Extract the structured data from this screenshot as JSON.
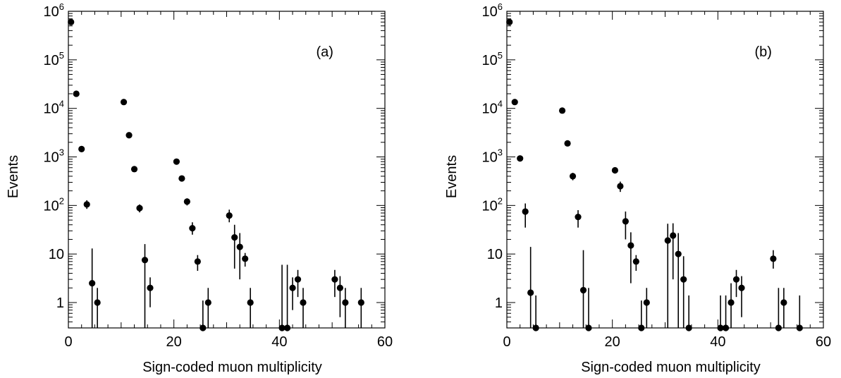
{
  "chart_data": [
    {
      "type": "scatter",
      "panel_label": "(a)",
      "xlabel": "Sign-coded muon multiplicity",
      "ylabel": "Events",
      "xlim": [
        0,
        60
      ],
      "ylim": [
        0.3,
        1000000
      ],
      "yscale": "log",
      "x_ticks": [
        "0",
        "20",
        "40",
        "60"
      ],
      "y_ticks": [
        "1",
        "10",
        "10^2",
        "10^3",
        "10^4",
        "10^5",
        "10^6"
      ],
      "grid": false,
      "points": [
        {
          "x": 0.5,
          "y": 600000,
          "lo": 600000,
          "hi": 600000
        },
        {
          "x": 1.5,
          "y": 20000,
          "lo": 20000,
          "hi": 20000
        },
        {
          "x": 2.5,
          "y": 1450,
          "lo": 1450,
          "hi": 1450
        },
        {
          "x": 3.5,
          "y": 105,
          "lo": 85,
          "hi": 128
        },
        {
          "x": 4.5,
          "y": 2.5,
          "lo": 0.3,
          "hi": 13
        },
        {
          "x": 5.5,
          "y": 1,
          "lo": 0.3,
          "hi": 2
        },
        {
          "x": 10.5,
          "y": 13500,
          "lo": 13500,
          "hi": 13500
        },
        {
          "x": 11.5,
          "y": 2800,
          "lo": 2800,
          "hi": 2800
        },
        {
          "x": 12.5,
          "y": 560,
          "lo": 560,
          "hi": 560
        },
        {
          "x": 13.5,
          "y": 88,
          "lo": 72,
          "hi": 105
        },
        {
          "x": 14.5,
          "y": 7.5,
          "lo": 0.3,
          "hi": 16
        },
        {
          "x": 15.5,
          "y": 2,
          "lo": 0.8,
          "hi": 3.3
        },
        {
          "x": 20.5,
          "y": 800,
          "lo": 800,
          "hi": 800
        },
        {
          "x": 21.5,
          "y": 360,
          "lo": 360,
          "hi": 360
        },
        {
          "x": 22.5,
          "y": 120,
          "lo": 100,
          "hi": 140
        },
        {
          "x": 23.5,
          "y": 34,
          "lo": 25,
          "hi": 45
        },
        {
          "x": 24.5,
          "y": 7,
          "lo": 4.5,
          "hi": 9.5
        },
        {
          "x": 25.5,
          "y": 0.3,
          "lo": 0.3,
          "hi": 1.1
        },
        {
          "x": 26.5,
          "y": 1,
          "lo": 0.3,
          "hi": 2
        },
        {
          "x": 30.5,
          "y": 62,
          "lo": 45,
          "hi": 82
        },
        {
          "x": 31.5,
          "y": 22,
          "lo": 5,
          "hi": 40
        },
        {
          "x": 32.5,
          "y": 14,
          "lo": 3,
          "hi": 27
        },
        {
          "x": 33.5,
          "y": 8,
          "lo": 5.5,
          "hi": 10.5
        },
        {
          "x": 34.5,
          "y": 1,
          "lo": 0.3,
          "hi": 2
        },
        {
          "x": 40.5,
          "y": 0.3,
          "lo": 0.3,
          "hi": 6
        },
        {
          "x": 41.5,
          "y": 0.3,
          "lo": 0.3,
          "hi": 6
        },
        {
          "x": 42.5,
          "y": 2,
          "lo": 0.7,
          "hi": 3.3
        },
        {
          "x": 43.5,
          "y": 3,
          "lo": 1.3,
          "hi": 4.7
        },
        {
          "x": 44.5,
          "y": 1,
          "lo": 0.3,
          "hi": 2
        },
        {
          "x": 50.5,
          "y": 3,
          "lo": 1.3,
          "hi": 4.7
        },
        {
          "x": 51.5,
          "y": 2,
          "lo": 0.5,
          "hi": 3.5
        },
        {
          "x": 52.5,
          "y": 1,
          "lo": 0.3,
          "hi": 2
        },
        {
          "x": 55.5,
          "y": 1,
          "lo": 0.3,
          "hi": 2
        }
      ]
    },
    {
      "type": "scatter",
      "panel_label": "(b)",
      "xlabel": "Sign-coded muon multiplicity",
      "ylabel": "Events",
      "xlim": [
        0,
        60
      ],
      "ylim": [
        0.3,
        1000000
      ],
      "yscale": "log",
      "x_ticks": [
        "0",
        "20",
        "40",
        "60"
      ],
      "y_ticks": [
        "1",
        "10",
        "10^2",
        "10^3",
        "10^4",
        "10^5",
        "10^6"
      ],
      "grid": false,
      "points": [
        {
          "x": 0.5,
          "y": 600000,
          "lo": 600000,
          "hi": 600000
        },
        {
          "x": 1.5,
          "y": 13500,
          "lo": 13500,
          "hi": 13500
        },
        {
          "x": 2.5,
          "y": 930,
          "lo": 930,
          "hi": 930
        },
        {
          "x": 3.5,
          "y": 75,
          "lo": 35,
          "hi": 110
        },
        {
          "x": 4.5,
          "y": 1.6,
          "lo": 0.3,
          "hi": 14
        },
        {
          "x": 5.5,
          "y": 0.3,
          "lo": 0.3,
          "hi": 1.4
        },
        {
          "x": 10.5,
          "y": 9000,
          "lo": 9000,
          "hi": 9000
        },
        {
          "x": 11.5,
          "y": 1900,
          "lo": 1900,
          "hi": 1900
        },
        {
          "x": 12.5,
          "y": 400,
          "lo": 330,
          "hi": 470
        },
        {
          "x": 13.5,
          "y": 58,
          "lo": 35,
          "hi": 80
        },
        {
          "x": 14.5,
          "y": 1.8,
          "lo": 0.3,
          "hi": 12
        },
        {
          "x": 15.5,
          "y": 0.3,
          "lo": 0.3,
          "hi": 2
        },
        {
          "x": 20.5,
          "y": 530,
          "lo": 530,
          "hi": 530
        },
        {
          "x": 21.5,
          "y": 250,
          "lo": 190,
          "hi": 310
        },
        {
          "x": 22.5,
          "y": 47,
          "lo": 20,
          "hi": 75
        },
        {
          "x": 23.5,
          "y": 15,
          "lo": 2.5,
          "hi": 28
        },
        {
          "x": 24.5,
          "y": 7,
          "lo": 4.5,
          "hi": 9.5
        },
        {
          "x": 25.5,
          "y": 0.3,
          "lo": 0.3,
          "hi": 1.1
        },
        {
          "x": 26.5,
          "y": 1,
          "lo": 0.3,
          "hi": 2
        },
        {
          "x": 30.5,
          "y": 19,
          "lo": 0.3,
          "hi": 42
        },
        {
          "x": 31.5,
          "y": 24,
          "lo": 3,
          "hi": 43
        },
        {
          "x": 32.5,
          "y": 10,
          "lo": 0.3,
          "hi": 27
        },
        {
          "x": 33.5,
          "y": 3,
          "lo": 0.3,
          "hi": 9
        },
        {
          "x": 34.5,
          "y": 0.3,
          "lo": 0.3,
          "hi": 1.4
        },
        {
          "x": 40.5,
          "y": 0.3,
          "lo": 0.3,
          "hi": 1.4
        },
        {
          "x": 41.5,
          "y": 0.3,
          "lo": 0.3,
          "hi": 1.4
        },
        {
          "x": 42.5,
          "y": 1,
          "lo": 0.3,
          "hi": 2.5
        },
        {
          "x": 43.5,
          "y": 3,
          "lo": 1.3,
          "hi": 4.7
        },
        {
          "x": 44.5,
          "y": 2,
          "lo": 0.5,
          "hi": 3.5
        },
        {
          "x": 50.5,
          "y": 8,
          "lo": 5,
          "hi": 12
        },
        {
          "x": 51.5,
          "y": 0.3,
          "lo": 0.3,
          "hi": 2
        },
        {
          "x": 52.5,
          "y": 1,
          "lo": 0.3,
          "hi": 2
        },
        {
          "x": 55.5,
          "y": 0.3,
          "lo": 0.3,
          "hi": 1.4
        }
      ]
    }
  ]
}
